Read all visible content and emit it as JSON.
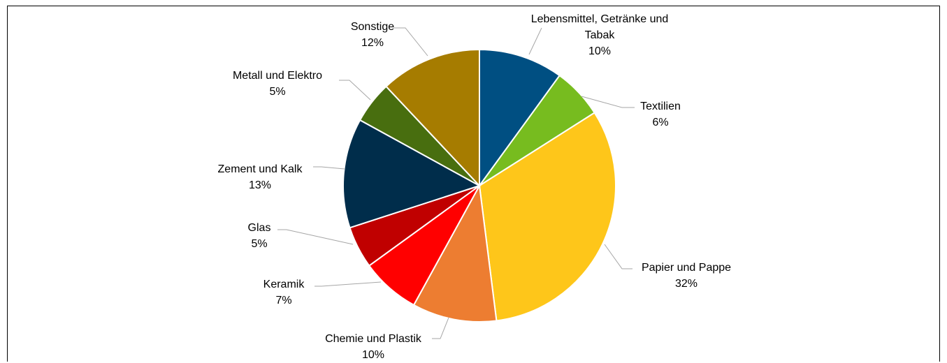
{
  "chart_data": {
    "type": "pie",
    "categories": [
      "Lebensmittel, Getränke und Tabak",
      "Textilien",
      "Papier und Pappe",
      "Chemie und Plastik",
      "Keramik",
      "Glas",
      "Zement und Kalk",
      "Metall und Elektro",
      "Sonstige"
    ],
    "values": [
      10,
      6,
      32,
      10,
      7,
      5,
      13,
      5,
      12
    ],
    "value_labels": [
      "10%",
      "6%",
      "32%",
      "10%",
      "7%",
      "5%",
      "13%",
      "5%",
      "12%"
    ],
    "colors": [
      "#004f82",
      "#77bc1f",
      "#fec61a",
      "#ed7d31",
      "#ff0000",
      "#c00000",
      "#002d4b",
      "#486e0f",
      "#a67c00"
    ]
  }
}
